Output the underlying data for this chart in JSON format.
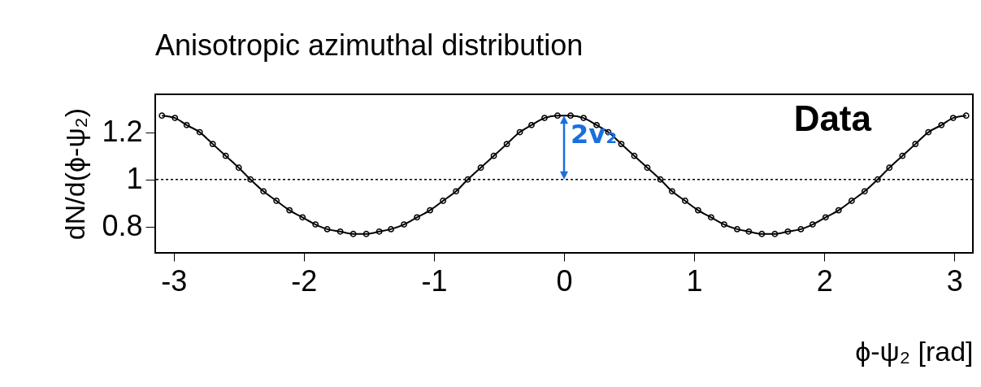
{
  "chart_data": {
    "type": "line",
    "title": "Anisotropic azimuthal distribution",
    "xlabel": "ϕ-ψ₂ [rad]",
    "ylabel": "dN/d(ϕ-ψ₂)",
    "xlim": [
      -3.1416,
      3.1416
    ],
    "xticks": [
      -3,
      -2,
      -1,
      0,
      1,
      2,
      3
    ],
    "ylim": [
      0.69,
      1.36
    ],
    "yticks": [
      0.8,
      1,
      1.2
    ],
    "grid": false,
    "marker": "circle",
    "line_style": "solid",
    "ref_lines": [
      {
        "axis": "y",
        "value": 1,
        "line_style": "dotted",
        "color": "#000000"
      }
    ],
    "annotations": [
      "2v₂",
      "Data"
    ],
    "series": [
      {
        "color": "#000000",
        "x": [
          -3.09,
          -2.99,
          -2.9,
          -2.8,
          -2.7,
          -2.6,
          -2.5,
          -2.41,
          -2.31,
          -2.21,
          -2.11,
          -2.01,
          -1.91,
          -1.82,
          -1.72,
          -1.62,
          -1.52,
          -1.42,
          -1.33,
          -1.23,
          -1.13,
          -1.03,
          -0.93,
          -0.83,
          -0.74,
          -0.64,
          -0.54,
          -0.44,
          -0.34,
          -0.25,
          -0.15,
          -0.05,
          0.05,
          0.15,
          0.25,
          0.34,
          0.44,
          0.54,
          0.64,
          0.74,
          0.83,
          0.93,
          1.03,
          1.13,
          1.23,
          1.33,
          1.42,
          1.52,
          1.62,
          1.72,
          1.82,
          1.91,
          2.01,
          2.11,
          2.21,
          2.31,
          2.41,
          2.5,
          2.6,
          2.7,
          2.8,
          2.9,
          2.99,
          3.09
        ],
        "values": [
          1.27,
          1.26,
          1.23,
          1.2,
          1.15,
          1.1,
          1.05,
          1.0,
          0.95,
          0.91,
          0.87,
          0.84,
          0.81,
          0.79,
          0.78,
          0.77,
          0.77,
          0.78,
          0.79,
          0.81,
          0.84,
          0.87,
          0.91,
          0.95,
          1.0,
          1.05,
          1.1,
          1.15,
          1.2,
          1.23,
          1.26,
          1.27,
          1.27,
          1.26,
          1.23,
          1.2,
          1.15,
          1.1,
          1.05,
          1.0,
          0.95,
          0.91,
          0.87,
          0.84,
          0.81,
          0.79,
          0.78,
          0.77,
          0.77,
          0.78,
          0.79,
          0.81,
          0.84,
          0.87,
          0.91,
          0.95,
          1.0,
          1.05,
          1.1,
          1.15,
          1.2,
          1.23,
          1.26,
          1.27
        ]
      }
    ]
  }
}
